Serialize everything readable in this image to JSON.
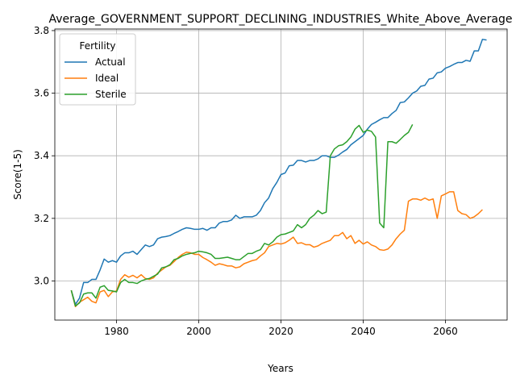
{
  "chart_data": {
    "type": "line",
    "title": "Average_GOVERNMENT_SUPPORT_DECLINING_INDUSTRIES_White_Above_Average",
    "xlabel": "Years",
    "ylabel": "Score(1-5)",
    "xlim": [
      1965,
      2075
    ],
    "ylim": [
      2.875,
      3.805
    ],
    "xticks": [
      1980,
      2000,
      2020,
      2040,
      2060
    ],
    "yticks": [
      3.0,
      3.2,
      3.4,
      3.6,
      3.8
    ],
    "xtick_labels": [
      "1980",
      "2000",
      "2020",
      "2040",
      "2060"
    ],
    "ytick_labels": [
      "3.0",
      "3.2",
      "3.4",
      "3.6",
      "3.8"
    ],
    "grid": true,
    "legend": {
      "title": "Fertility",
      "placement": "top-left"
    },
    "x_start": 1969,
    "series": [
      {
        "name": "Actual",
        "color": "#1f77b4",
        "values": [
          2.97,
          2.925,
          2.945,
          2.995,
          2.995,
          3.005,
          3.005,
          3.035,
          3.07,
          3.06,
          3.065,
          3.06,
          3.08,
          3.09,
          3.09,
          3.095,
          3.085,
          3.1,
          3.115,
          3.11,
          3.115,
          3.135,
          3.14,
          3.142,
          3.145,
          3.152,
          3.158,
          3.165,
          3.17,
          3.168,
          3.165,
          3.165,
          3.168,
          3.162,
          3.17,
          3.17,
          3.185,
          3.19,
          3.19,
          3.195,
          3.21,
          3.2,
          3.205,
          3.205,
          3.205,
          3.21,
          3.225,
          3.25,
          3.265,
          3.295,
          3.315,
          3.34,
          3.345,
          3.368,
          3.37,
          3.385,
          3.385,
          3.38,
          3.385,
          3.385,
          3.39,
          3.4,
          3.4,
          3.395,
          3.395,
          3.402,
          3.412,
          3.42,
          3.435,
          3.445,
          3.455,
          3.465,
          3.485,
          3.5,
          3.507,
          3.515,
          3.522,
          3.522,
          3.535,
          3.545,
          3.57,
          3.572,
          3.585,
          3.6,
          3.607,
          3.622,
          3.625,
          3.645,
          3.648,
          3.665,
          3.668,
          3.68,
          3.685,
          3.692,
          3.698,
          3.698,
          3.705,
          3.702,
          3.735,
          3.735,
          3.772,
          3.77
        ]
      },
      {
        "name": "Ideal",
        "color": "#ff7f0e",
        "values": [
          2.97,
          2.918,
          2.932,
          2.94,
          2.948,
          2.935,
          2.93,
          2.965,
          2.97,
          2.95,
          2.965,
          2.968,
          3.005,
          3.02,
          3.012,
          3.018,
          3.01,
          3.02,
          3.008,
          3.005,
          3.01,
          3.025,
          3.035,
          3.045,
          3.05,
          3.062,
          3.075,
          3.085,
          3.092,
          3.09,
          3.085,
          3.085,
          3.075,
          3.068,
          3.06,
          3.05,
          3.055,
          3.052,
          3.048,
          3.048,
          3.042,
          3.045,
          3.055,
          3.06,
          3.065,
          3.068,
          3.08,
          3.09,
          3.11,
          3.115,
          3.12,
          3.118,
          3.122,
          3.13,
          3.14,
          3.12,
          3.122,
          3.116,
          3.116,
          3.108,
          3.112,
          3.12,
          3.125,
          3.13,
          3.145,
          3.145,
          3.155,
          3.135,
          3.145,
          3.12,
          3.13,
          3.118,
          3.125,
          3.115,
          3.11,
          3.1,
          3.098,
          3.102,
          3.115,
          3.135,
          3.15,
          3.162,
          3.255,
          3.262,
          3.262,
          3.258,
          3.265,
          3.258,
          3.262,
          3.2,
          3.272,
          3.278,
          3.285,
          3.285,
          3.225,
          3.215,
          3.212,
          3.2,
          3.205,
          3.215,
          3.228
        ]
      },
      {
        "name": "Sterile",
        "color": "#2ca02c",
        "values": [
          2.97,
          2.92,
          2.93,
          2.958,
          2.962,
          2.962,
          2.945,
          2.98,
          2.985,
          2.97,
          2.968,
          2.965,
          2.995,
          3.005,
          2.995,
          2.995,
          2.992,
          3.0,
          3.005,
          3.008,
          3.015,
          3.022,
          3.042,
          3.045,
          3.052,
          3.068,
          3.072,
          3.08,
          3.085,
          3.088,
          3.09,
          3.095,
          3.093,
          3.09,
          3.085,
          3.072,
          3.072,
          3.074,
          3.076,
          3.072,
          3.068,
          3.068,
          3.078,
          3.088,
          3.088,
          3.095,
          3.1,
          3.12,
          3.115,
          3.125,
          3.14,
          3.148,
          3.15,
          3.155,
          3.16,
          3.18,
          3.17,
          3.18,
          3.2,
          3.21,
          3.225,
          3.215,
          3.22,
          3.4,
          3.422,
          3.432,
          3.435,
          3.445,
          3.46,
          3.485,
          3.497,
          3.475,
          3.482,
          3.478,
          3.46,
          3.185,
          3.17,
          3.445,
          3.445,
          3.44,
          3.452,
          3.465,
          3.475,
          3.5
        ]
      }
    ]
  }
}
